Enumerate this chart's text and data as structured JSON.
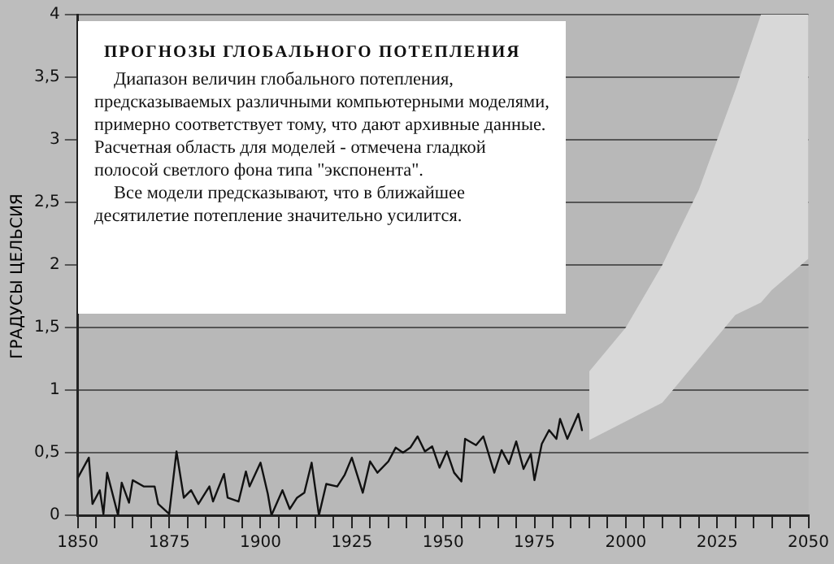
{
  "chart_data": {
    "type": "line",
    "title": "ПРОГНОЗЫ ГЛОБАЛЬНОГО ПОТЕПЛЕНИЯ",
    "annotations": [
      "Диапазон величин глобального потепления, предсказываемых различными компьютерными моделями, примерно соответствует тому, что дают архивные данные. Расчетная область для моделей - отмечена гладкой полосой светлого фона типа \"экспонента\".",
      "Все модели предсказывают, что в ближайшее десятилетие потепление значительно усилится."
    ],
    "ylabel": "ГРАДУСЫ ЦЕЛЬСИЯ",
    "xlim": [
      1850,
      2050
    ],
    "xticks": [
      1850,
      {
        "value": 1855,
        "label": null
      },
      {
        "value": 1860,
        "label": null
      },
      {
        "value": 1865,
        "label": null
      },
      {
        "value": 1870,
        "label": null
      },
      1875,
      {
        "value": 1880,
        "label": null
      },
      {
        "value": 1885,
        "label": null
      },
      {
        "value": 1890,
        "label": null
      },
      {
        "value": 1895,
        "label": null
      },
      1900,
      {
        "value": 1905,
        "label": null
      },
      {
        "value": 1910,
        "label": null
      },
      {
        "value": 1915,
        "label": null
      },
      {
        "value": 1920,
        "label": null
      },
      1925,
      {
        "value": 1930,
        "label": null
      },
      {
        "value": 1935,
        "label": null
      },
      {
        "value": 1940,
        "label": null
      },
      {
        "value": 1945,
        "label": null
      },
      1950,
      {
        "value": 1955,
        "label": null
      },
      {
        "value": 1960,
        "label": null
      },
      {
        "value": 1965,
        "label": null
      },
      {
        "value": 1970,
        "label": null
      },
      1975,
      {
        "value": 1980,
        "label": null
      },
      {
        "value": 1985,
        "label": null
      },
      {
        "value": 1990,
        "label": null
      },
      {
        "value": 1995,
        "label": null
      },
      2000,
      {
        "value": 2005,
        "label": null
      },
      {
        "value": 2010,
        "label": null
      },
      {
        "value": 2015,
        "label": null
      },
      {
        "value": 2020,
        "label": null
      },
      2025,
      {
        "value": 2030,
        "label": null
      },
      {
        "value": 2035,
        "label": null
      },
      {
        "value": 2040,
        "label": null
      },
      {
        "value": 2045,
        "label": null
      },
      2050
    ],
    "ylim": [
      0,
      4
    ],
    "yticks": [
      0,
      {
        "value": 0.5,
        "label": "0,5"
      },
      1,
      {
        "value": 1.5,
        "label": "1,5"
      },
      2,
      {
        "value": 2.5,
        "label": "2,5"
      },
      3,
      {
        "value": 3.5,
        "label": "3,5"
      },
      4
    ],
    "grid": "y",
    "legend": false,
    "marker": "none",
    "line_style": "solid",
    "series": [
      {
        "color": "#111111",
        "x": [
          1850,
          1853,
          1854,
          1856,
          1857,
          1858,
          1861,
          1862,
          1864,
          1865,
          1868,
          1871,
          1872,
          1875,
          1877,
          1879,
          1881,
          1883,
          1886,
          1887,
          1890,
          1891,
          1894,
          1896,
          1897,
          1900,
          1902,
          1903,
          1906,
          1908,
          1910,
          1912,
          1914,
          1916,
          1918,
          1921,
          1923,
          1925,
          1928,
          1930,
          1932,
          1935,
          1937,
          1939,
          1941,
          1943,
          1945,
          1947,
          1949,
          1951,
          1953,
          1955,
          1956,
          1959,
          1961,
          1964,
          1966,
          1968,
          1970,
          1972,
          1974,
          1975,
          1977,
          1979,
          1981,
          1982,
          1984,
          1987,
          1988
        ],
        "values": [
          0.3,
          0.46,
          0.09,
          0.2,
          0.01,
          0.34,
          0,
          0.26,
          0.1,
          0.28,
          0.23,
          0.23,
          0.09,
          0.01,
          0.51,
          0.14,
          0.2,
          0.09,
          0.23,
          0.11,
          0.33,
          0.14,
          0.11,
          0.35,
          0.23,
          0.42,
          0.17,
          0,
          0.2,
          0.05,
          0.14,
          0.18,
          0.42,
          0.0,
          0.25,
          0.23,
          0.32,
          0.46,
          0.18,
          0.43,
          0.34,
          0.43,
          0.54,
          0.5,
          0.54,
          0.63,
          0.51,
          0.55,
          0.38,
          0.51,
          0.34,
          0.27,
          0.61,
          0.56,
          0.63,
          0.34,
          0.52,
          0.41,
          0.59,
          0.37,
          0.49,
          0.28,
          0.57,
          0.68,
          0.61,
          0.77,
          0.61,
          0.81,
          0.68
        ]
      },
      {
        "type": "area",
        "color": "#d8d8d8",
        "x": [
          1990,
          2000,
          2010,
          2020,
          2030,
          2037,
          2040,
          2050
        ],
        "values": [
          null,
          null,
          null,
          null,
          null,
          null,
          null,
          null
        ],
        "lower": [
          0.6,
          0.75,
          0.9,
          1.25,
          1.6,
          1.7,
          1.8,
          2.05
        ],
        "upper": [
          1.15,
          1.5,
          2.0,
          2.6,
          3.4,
          4,
          4,
          4
        ]
      }
    ]
  }
}
